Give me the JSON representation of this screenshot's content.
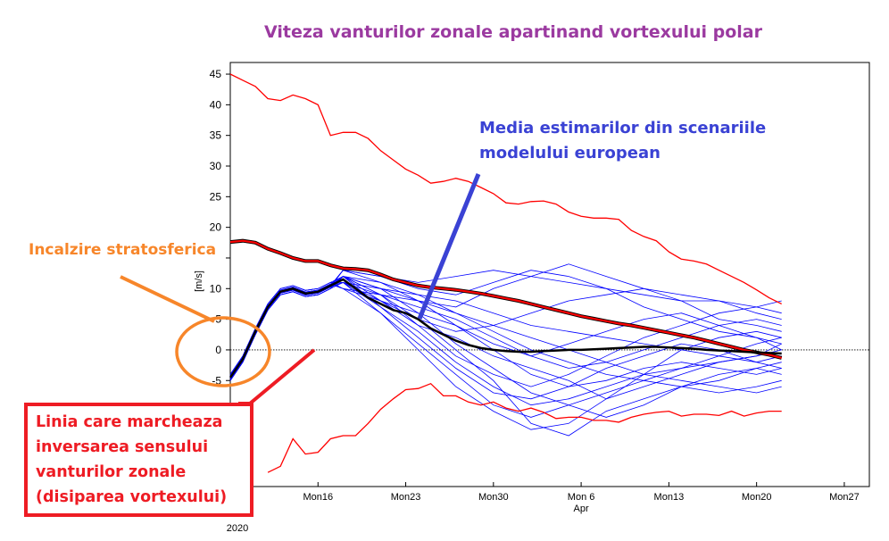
{
  "chart_data": {
    "type": "line",
    "title": "Viteza vanturilor zonale apartinand vortexului polar",
    "ylabel": "[m/s]",
    "ylim": [
      -22.3,
      46.9
    ],
    "yticks": [
      -5,
      0,
      5,
      10,
      15,
      20,
      25,
      30,
      35,
      40,
      45
    ],
    "ytick_labels": [
      "-5",
      "0",
      "5",
      "10",
      "",
      "20",
      "25",
      "30",
      "35",
      "40",
      "45"
    ],
    "xlim": [
      "2020-03-09",
      "2020-04-29"
    ],
    "xticks": [
      {
        "date": "2020-03-16",
        "label": "Mon16"
      },
      {
        "date": "2020-03-23",
        "label": "Mon23"
      },
      {
        "date": "2020-03-30",
        "label": "Mon30"
      },
      {
        "date": "2020-04-06",
        "label": "Mon 6",
        "sub": "Apr"
      },
      {
        "date": "2020-04-13",
        "label": "Mon13"
      },
      {
        "date": "2020-04-20",
        "label": "Mon20"
      },
      {
        "date": "2020-04-27",
        "label": "Mon27"
      }
    ],
    "year_label": "2020",
    "reference_line": 0,
    "dates": [
      "2020-03-09",
      "2020-03-10",
      "2020-03-11",
      "2020-03-12",
      "2020-03-13",
      "2020-03-14",
      "2020-03-15",
      "2020-03-16",
      "2020-03-17",
      "2020-03-18",
      "2020-03-19",
      "2020-03-20",
      "2020-03-21",
      "2020-03-22",
      "2020-03-23",
      "2020-03-24",
      "2020-03-25",
      "2020-03-26",
      "2020-03-27",
      "2020-03-28",
      "2020-03-29",
      "2020-03-30",
      "2020-03-31",
      "2020-04-01",
      "2020-04-02",
      "2020-04-03",
      "2020-04-04",
      "2020-04-05",
      "2020-04-06",
      "2020-04-07",
      "2020-04-08",
      "2020-04-09",
      "2020-04-10",
      "2020-04-11",
      "2020-04-12",
      "2020-04-13",
      "2020-04-14",
      "2020-04-15",
      "2020-04-16",
      "2020-04-17",
      "2020-04-18",
      "2020-04-19",
      "2020-04-20",
      "2020-04-21",
      "2020-04-22"
    ],
    "series": [
      {
        "color": "#ff0000",
        "style": "thin",
        "values": [
          45,
          44,
          43,
          41,
          40.7,
          41.6,
          41,
          40,
          35,
          35.5,
          35.5,
          34.5,
          32.5,
          31,
          29.5,
          28.5,
          27.2,
          27.5,
          28,
          27.5,
          26.5,
          25.5,
          24,
          23.8,
          24.2,
          24.3,
          23.8,
          22.5,
          21.8,
          21.5,
          21.5,
          21.3,
          19.5,
          18.5,
          17.8,
          16,
          14.8,
          14.5,
          14,
          13,
          12,
          11,
          9.8,
          8.5,
          7.5
        ]
      },
      {
        "color": "#ff0000",
        "style": "thick-outlined",
        "values": [
          17.6,
          17.8,
          17.5,
          16.5,
          15.8,
          15,
          14.5,
          14.5,
          13.8,
          13.3,
          13.2,
          13,
          12.3,
          11.5,
          11,
          10.5,
          10.2,
          10,
          9.8,
          9.5,
          9.2,
          8.8,
          8.4,
          8,
          7.5,
          7,
          6.5,
          6,
          5.5,
          5.1,
          4.7,
          4.3,
          4,
          3.6,
          3.2,
          2.8,
          2.4,
          2,
          1.5,
          1,
          0.5,
          0,
          -0.4,
          -0.8,
          -1.3
        ]
      },
      {
        "color": "#ff0000",
        "style": "thin",
        "values": [
          null,
          null,
          null,
          -20,
          -19,
          -14.5,
          -17,
          -16.7,
          -14.5,
          -14,
          -14,
          -12,
          -9.7,
          -8,
          -6.5,
          -6.3,
          -5.5,
          -7.5,
          -7.5,
          -8.5,
          -9,
          -8.5,
          -9.5,
          -10,
          -9.5,
          -10.2,
          -11.2,
          -11,
          -11,
          -11.5,
          -11.5,
          -11.8,
          -11,
          -10.5,
          -10.2,
          -10,
          -10.8,
          -10.5,
          -10.5,
          -10.7,
          -10,
          -10.8,
          -10.3,
          -10,
          -10
        ]
      },
      {
        "color": "#000000",
        "style": "thick",
        "values": [
          -4.5,
          -1.5,
          3,
          7,
          9.5,
          10,
          9.2,
          9.5,
          10.5,
          11.5,
          10,
          8.5,
          7.5,
          6.5,
          6,
          5,
          3.5,
          2.5,
          1.5,
          0.8,
          0.3,
          0,
          -0.2,
          -0.3,
          -0.3,
          -0.2,
          -0.1,
          0,
          0,
          0.1,
          0.2,
          0.3,
          0.4,
          0.5,
          0.5,
          0.4,
          0.3,
          0.2,
          0,
          -0.1,
          -0.2,
          -0.3,
          -0.4,
          -0.5,
          -0.6
        ]
      }
    ],
    "ensemble": {
      "color": "#0000ff",
      "dates": [
        "2020-03-18",
        "2020-03-21",
        "2020-03-24",
        "2020-03-27",
        "2020-03-30",
        "2020-04-02",
        "2020-04-05",
        "2020-04-08",
        "2020-04-11",
        "2020-04-14",
        "2020-04-17",
        "2020-04-20",
        "2020-04-22"
      ],
      "members": [
        [
          12,
          10,
          8,
          6,
          4,
          2,
          0,
          -2,
          -4,
          -5,
          -6,
          -7,
          -6
        ],
        [
          13,
          12,
          11,
          12,
          13,
          12,
          11,
          10,
          9,
          8,
          8,
          7,
          6
        ],
        [
          11,
          7,
          3,
          -2,
          -6,
          -9,
          -8,
          -6,
          -4,
          -3,
          -2,
          -1,
          0
        ],
        [
          12,
          9,
          5,
          0,
          -5,
          -12,
          -14,
          -10,
          -8,
          -6,
          -5,
          -3,
          -2
        ],
        [
          10,
          9,
          8,
          7,
          10,
          12,
          14,
          12,
          10,
          9,
          8,
          6,
          5
        ],
        [
          12,
          8,
          4,
          2,
          -1,
          -3,
          -5,
          -8,
          -6,
          -4,
          -2,
          -1,
          1
        ],
        [
          11,
          6,
          0,
          -6,
          -10,
          -13,
          -12,
          -8,
          -4,
          0,
          2,
          3,
          2
        ],
        [
          13,
          11,
          9,
          8,
          6,
          4,
          3,
          2,
          1,
          0,
          -1,
          -2,
          -3
        ],
        [
          10,
          8,
          5,
          3,
          4,
          6,
          8,
          9,
          10,
          8,
          5,
          4,
          3
        ],
        [
          12,
          10,
          6,
          1,
          -3,
          -7,
          -9,
          -11,
          -9,
          -6,
          -4,
          -3,
          -4
        ],
        [
          11,
          9,
          7,
          5,
          2,
          -1,
          -3,
          -2,
          0,
          2,
          4,
          5,
          4
        ],
        [
          12,
          7,
          2,
          -3,
          -7,
          -8,
          -6,
          -3,
          -1,
          1,
          0,
          -2,
          -1
        ],
        [
          13,
          12,
          10,
          9,
          11,
          13,
          12,
          10,
          7,
          5,
          3,
          2,
          1
        ],
        [
          10,
          6,
          1,
          -4,
          -9,
          -11,
          -9,
          -7,
          -5,
          -6,
          -7,
          -6,
          -5
        ],
        [
          11,
          10,
          9,
          6,
          3,
          0,
          -2,
          -4,
          -5,
          -3,
          -1,
          1,
          2
        ],
        [
          12,
          9,
          4,
          -1,
          -4,
          -6,
          -4,
          -1,
          2,
          4,
          6,
          7,
          8
        ],
        [
          11,
          8,
          6,
          4,
          1,
          -1,
          1,
          3,
          5,
          6,
          4,
          2,
          0
        ],
        [
          12,
          11,
          8,
          4,
          0,
          -4,
          -6,
          -5,
          -3,
          -2,
          -3,
          -4,
          -3
        ]
      ]
    },
    "grid": false
  },
  "annotations": {
    "stratospheric_warming": "Incalzire stratosferica",
    "ensemble_mean_line1": "Media estimarilor din scenariile",
    "ensemble_mean_line2": "modelului european",
    "reversal_lines": [
      "Linia care marcheaza",
      "inversarea sensului",
      "vanturilor zonale",
      "(disiparea vortexului)"
    ],
    "orange_color": "#f7862a",
    "red_color": "#ee1c24",
    "blue_color": "#3a42d4",
    "title_color": "#9b3aa0"
  }
}
